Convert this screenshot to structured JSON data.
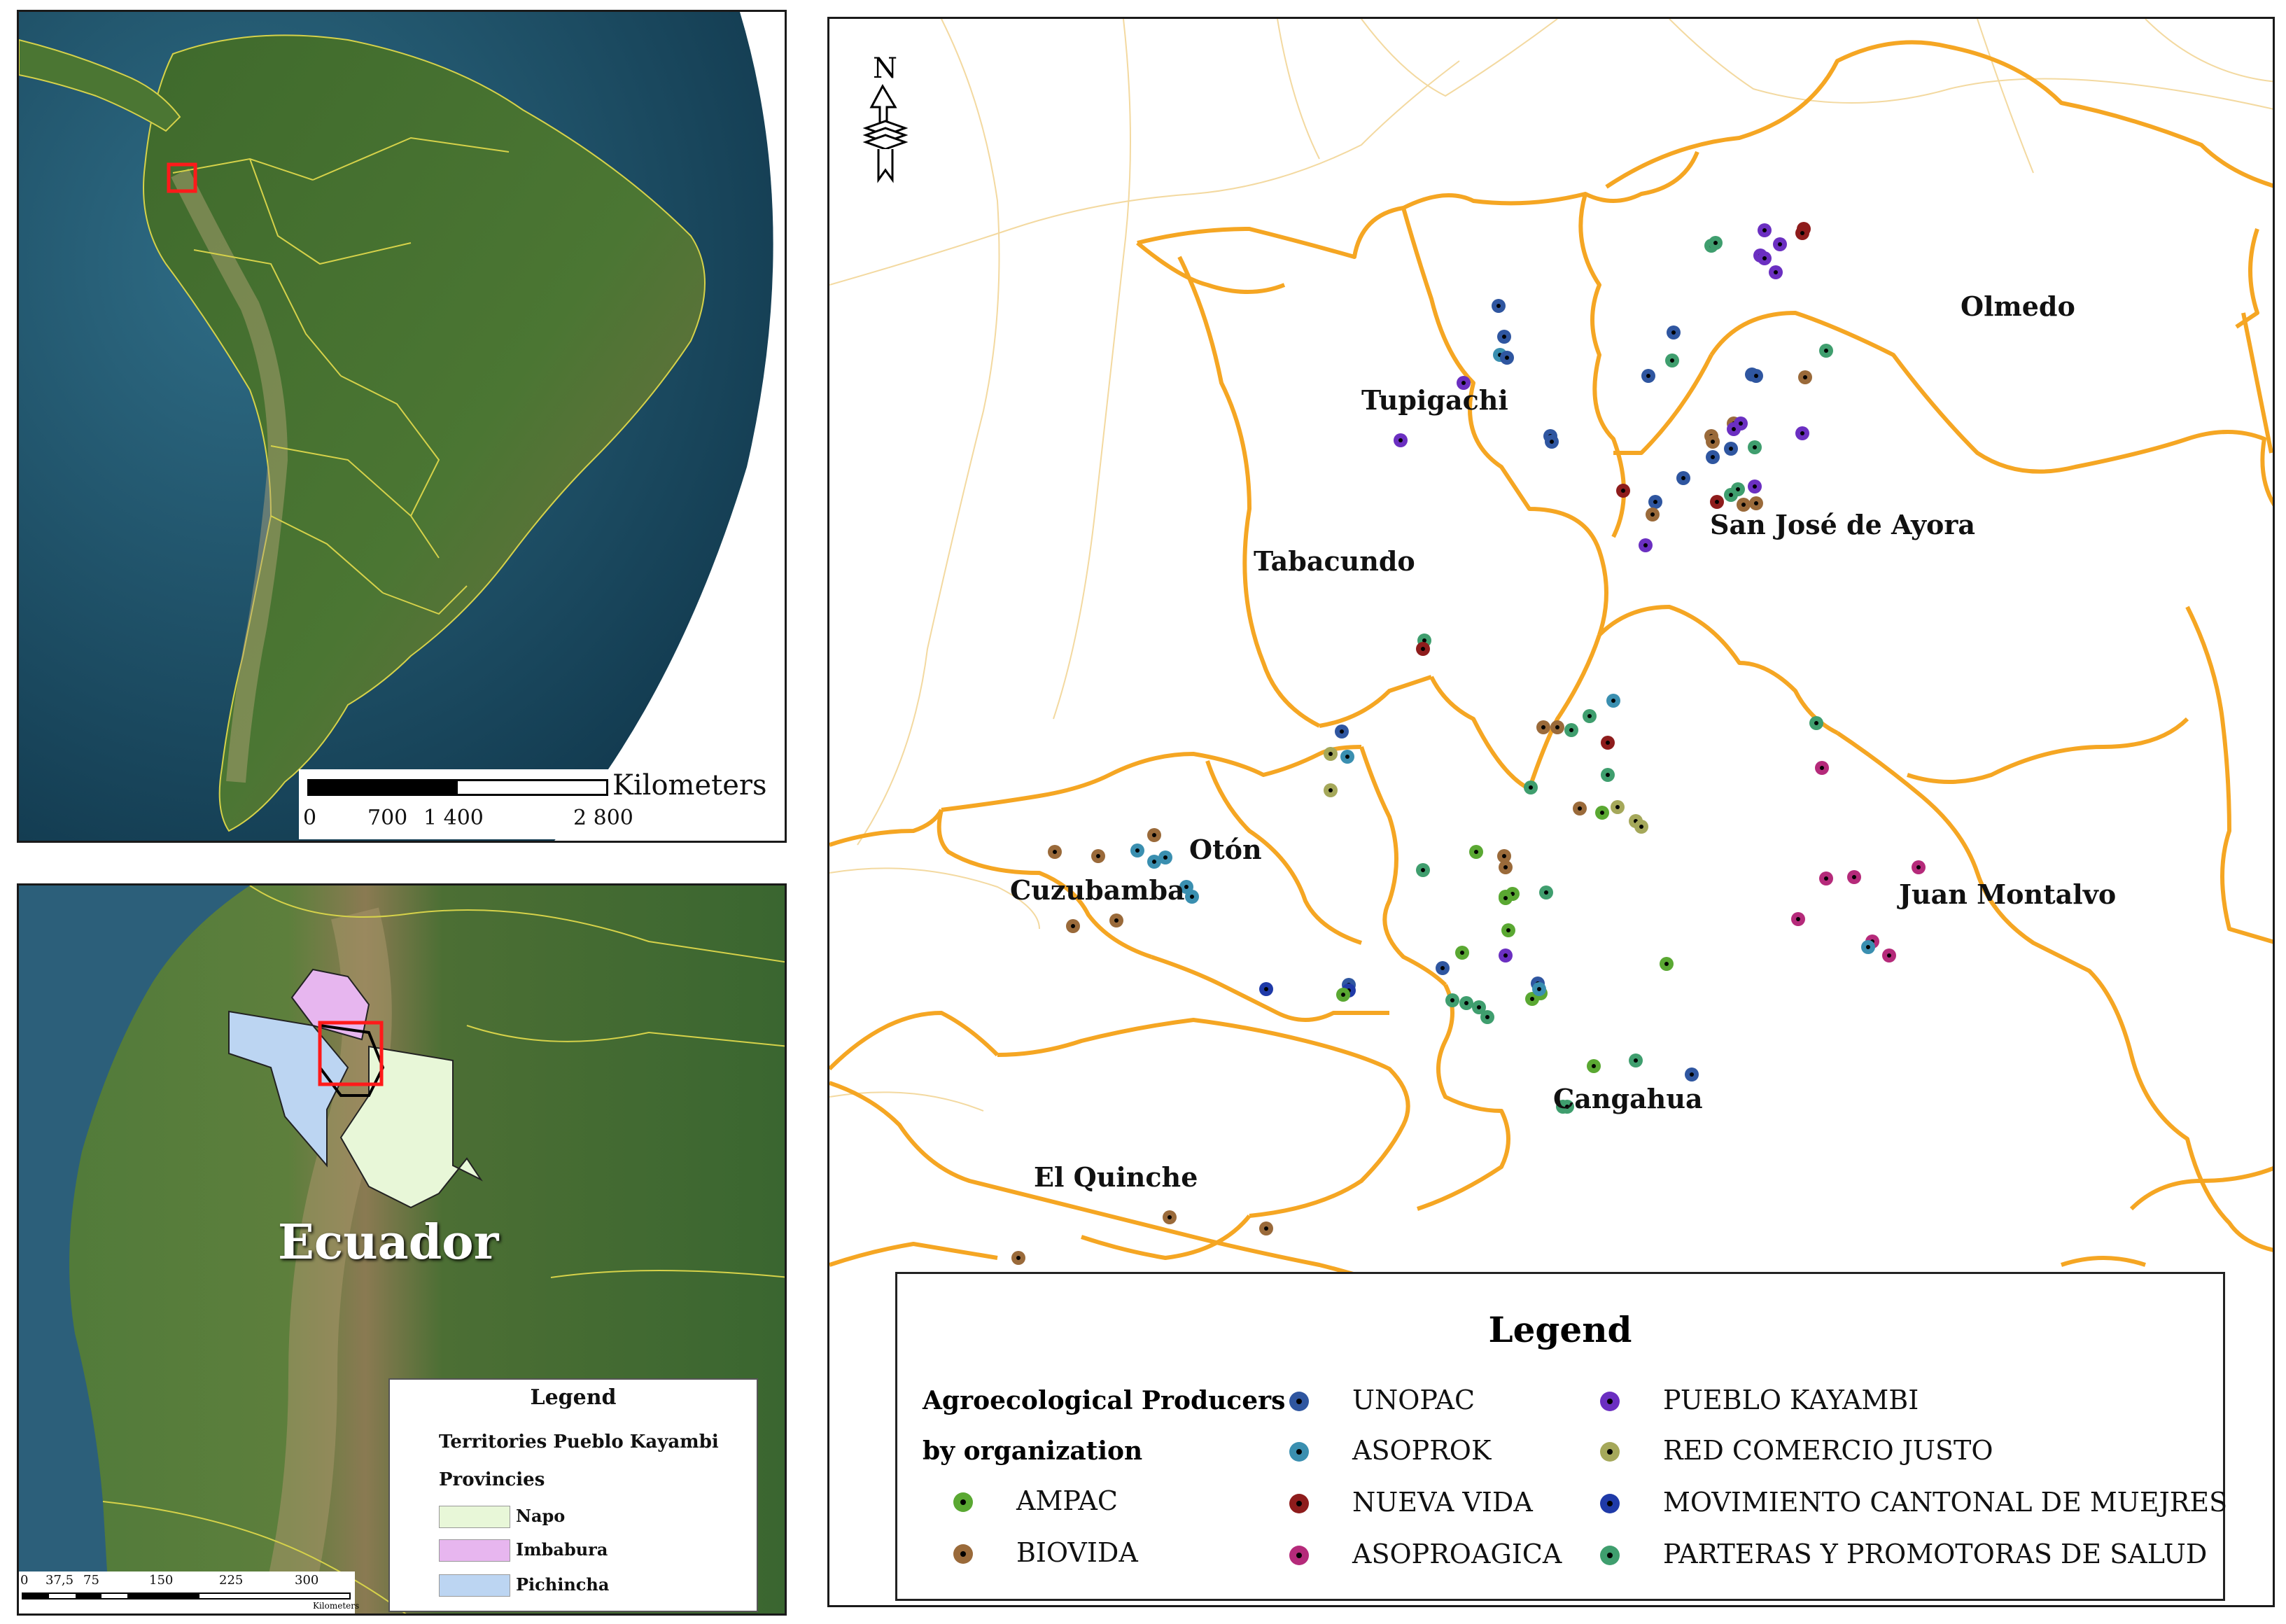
{
  "south_america_map": {
    "scale_unit": "Kilometers",
    "scale_ticks": [
      "0",
      "700",
      "1 400",
      "2 800"
    ]
  },
  "ecuador_map": {
    "country_label": "Ecuador",
    "legend": {
      "title": "Legend",
      "line1": "Territories Pueblo Kayambi",
      "line2": "Provincies",
      "provinces": [
        {
          "name": "Napo",
          "color": "#e8f7d8"
        },
        {
          "name": "Imbabura",
          "color": "#e7b6ef"
        },
        {
          "name": "Pichincha",
          "color": "#bcd5f2"
        }
      ]
    },
    "scale_ticks": [
      "0",
      "37,5",
      "75",
      "150",
      "225",
      "300"
    ],
    "scale_unit": "Kilometers"
  },
  "main_map": {
    "parishes": [
      "Olmedo",
      "Tupigachi",
      "San José de Ayora",
      "Tabacundo",
      "Otón",
      "Cuzubamba",
      "Juan Montalvo",
      "Cangahua",
      "El Quinche"
    ],
    "north_letter": "N",
    "boundary_color": "#f5a623",
    "legend": {
      "title": "Legend",
      "caption_line1": "Agroecological Producers",
      "caption_line2": "by organization",
      "organizations": [
        {
          "id": "AMPAC",
          "label": "AMPAC",
          "color": "#5aa832"
        },
        {
          "id": "BIOVIDA",
          "label": "BIOVIDA",
          "color": "#9a6a3a"
        },
        {
          "id": "UNOPAC",
          "label": "UNOPAC",
          "color": "#2f56a0"
        },
        {
          "id": "ASOPROK",
          "label": "ASOPROK",
          "color": "#3a8fb0"
        },
        {
          "id": "NUEVA_VIDA",
          "label": "NUEVA VIDA",
          "color": "#8e1c1c"
        },
        {
          "id": "ASOPROAGICA",
          "label": "ASOPROAGICA",
          "color": "#b52a7a"
        },
        {
          "id": "PUEBLO_KAYAMBI",
          "label": "PUEBLO KAYAMBI",
          "color": "#6b2fc1"
        },
        {
          "id": "RED_COMERCIO_JUSTO",
          "label": "RED COMERCIO JUSTO",
          "color": "#a5a85a"
        },
        {
          "id": "MOVIMIENTO",
          "label": "MOVIMIENTO CANTONAL DE MUEJRES",
          "color": "#1f3aa8"
        },
        {
          "id": "PARTERAS",
          "label": "PARTERAS Y PROMOTORAS DE SALUD",
          "color": "#3f9e6e"
        }
      ]
    }
  }
}
